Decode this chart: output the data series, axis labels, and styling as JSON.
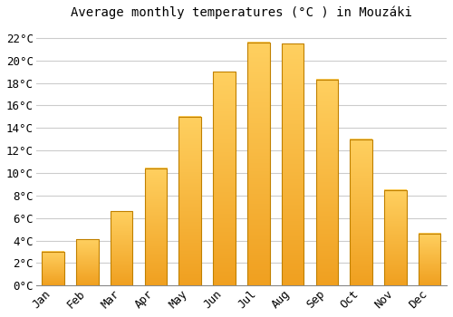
{
  "title": "Average monthly temperatures (°C ) in Mouzáki",
  "months": [
    "Jan",
    "Feb",
    "Mar",
    "Apr",
    "May",
    "Jun",
    "Jul",
    "Aug",
    "Sep",
    "Oct",
    "Nov",
    "Dec"
  ],
  "values": [
    3.0,
    4.1,
    6.6,
    10.4,
    15.0,
    19.0,
    21.6,
    21.5,
    18.3,
    13.0,
    8.5,
    4.6
  ],
  "bar_color_bottom": "#F0A020",
  "bar_color_top": "#FFD060",
  "bar_edge_color": "#C08000",
  "background_color": "#FFFFFF",
  "grid_color": "#CCCCCC",
  "ylim": [
    0,
    23
  ],
  "yticks": [
    0,
    2,
    4,
    6,
    8,
    10,
    12,
    14,
    16,
    18,
    20,
    22
  ],
  "title_fontsize": 10,
  "tick_fontsize": 9,
  "bar_width": 0.65
}
